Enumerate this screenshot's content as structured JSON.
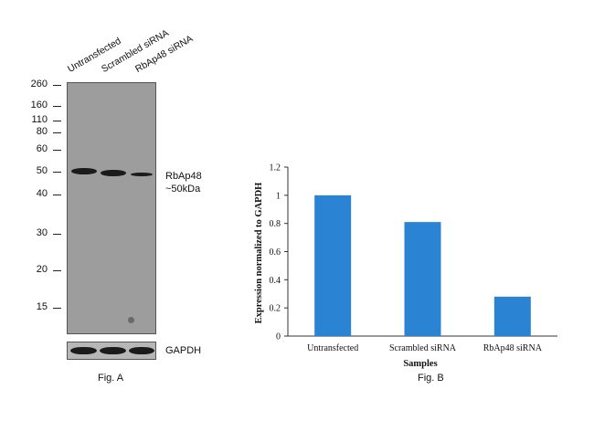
{
  "fig_a": {
    "lanes": [
      "Untransfected",
      "Scrambled siRNA",
      "RbAp48 siRNA"
    ],
    "mw_markers": [
      "260",
      "160",
      "110",
      "80",
      "60",
      "50",
      "40",
      "30",
      "20",
      "15"
    ],
    "target_label_line1": "RbAp48",
    "target_label_line2": "~50kDa",
    "loading_control": "GAPDH",
    "caption": "Fig. A",
    "blot_color": "#9d9d9d",
    "band_color": "#1b1b1b"
  },
  "fig_b": {
    "caption": "Fig. B"
  },
  "chart_data": {
    "type": "bar",
    "categories": [
      "Untransfected",
      "Scrambled siRNA",
      "RbAp48 siRNA"
    ],
    "values": [
      1.0,
      0.81,
      0.28
    ],
    "xlabel": "Samples",
    "ylabel": "Expression normalized to GAPDH",
    "ylim": [
      0,
      1.2
    ],
    "yticks": [
      "0",
      "0.2",
      "0.4",
      "0.6",
      "0.8",
      "1",
      "1.2"
    ],
    "grid": false,
    "legend": "none",
    "bar_color": "#2b83d4"
  }
}
